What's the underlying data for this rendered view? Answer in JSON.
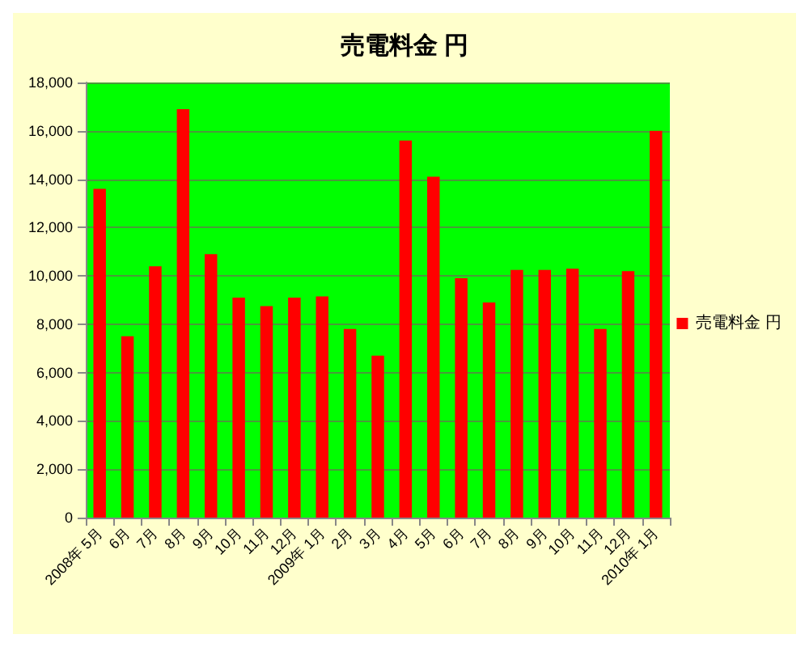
{
  "chart_data": {
    "type": "bar",
    "title": "売電料金 円",
    "categories": [
      "2008年 5月",
      "6月",
      "7月",
      "8月",
      "9月",
      "10月",
      "11月",
      "12月",
      "2009年 1月",
      "2月",
      "3月",
      "4月",
      "5月",
      "6月",
      "7月",
      "8月",
      "9月",
      "10月",
      "11月",
      "12月",
      "2010年 1月"
    ],
    "series": [
      {
        "name": "売電料金 円",
        "color": "#ff0000",
        "values": [
          13600,
          7500,
          10400,
          16900,
          10900,
          9100,
          8750,
          9100,
          9150,
          7800,
          6700,
          15600,
          14100,
          9900,
          8900,
          10250,
          10250,
          10300,
          7800,
          10200,
          16000
        ]
      }
    ],
    "ylim": [
      0,
      18000
    ],
    "yticks": [
      0,
      {
        "value": 2000,
        "label": "2,000"
      },
      {
        "value": 4000,
        "label": "4,000"
      },
      {
        "value": 6000,
        "label": "6,000"
      },
      {
        "value": 8000,
        "label": "8,000"
      },
      {
        "value": 10000,
        "label": "10,000"
      },
      {
        "value": 12000,
        "label": "12,000"
      },
      {
        "value": 14000,
        "label": "14,000"
      },
      {
        "value": 16000,
        "label": "16,000"
      },
      {
        "value": 18000,
        "label": "18,000"
      }
    ],
    "grid": "y",
    "legend": "right"
  }
}
